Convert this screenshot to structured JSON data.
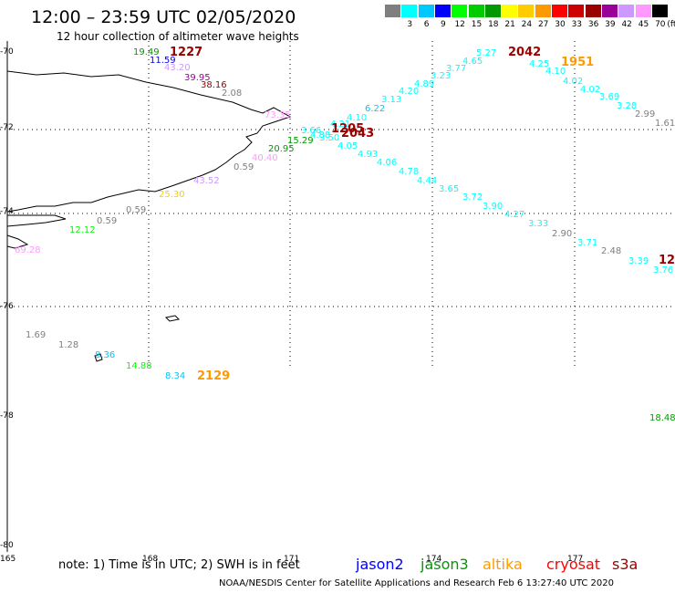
{
  "title": "12:00 – 23:59 UTC 02/05/2020",
  "subtitle": "12 hour collection of altimeter wave heights",
  "legend": {
    "unit": "(ft)",
    "items": [
      {
        "label": "",
        "color": "#7f7f7f"
      },
      {
        "label": "3",
        "color": "#00ffff"
      },
      {
        "label": "6",
        "color": "#00c8ff"
      },
      {
        "label": "9",
        "color": "#0000ff"
      },
      {
        "label": "12",
        "color": "#00ff00"
      },
      {
        "label": "15",
        "color": "#00cc00"
      },
      {
        "label": "18",
        "color": "#009900"
      },
      {
        "label": "21",
        "color": "#ffff00"
      },
      {
        "label": "24",
        "color": "#ffcc00"
      },
      {
        "label": "27",
        "color": "#ff9900"
      },
      {
        "label": "30",
        "color": "#ff0000"
      },
      {
        "label": "33",
        "color": "#cc0000"
      },
      {
        "label": "36",
        "color": "#990000"
      },
      {
        "label": "39",
        "color": "#990099"
      },
      {
        "label": "42",
        "color": "#cc99ff"
      },
      {
        "label": "45",
        "color": "#ff99ff"
      },
      {
        "label": "70",
        "color": "#000000"
      }
    ]
  },
  "lat_labels": [
    "-70",
    "-72",
    "-74",
    "-76",
    "-78",
    "-80"
  ],
  "lon_labels": [
    "165",
    "168",
    "171",
    "174",
    "177"
  ],
  "observations": [
    {
      "text": "19.49",
      "color": "#009900"
    },
    {
      "text": "11.59",
      "color": "#0000ff"
    },
    {
      "text": "43.20",
      "color": "#cc99ff"
    },
    {
      "text": "39.95",
      "color": "#990099"
    },
    {
      "text": "38.16",
      "color": "#990000"
    },
    {
      "text": "2.08",
      "color": "#7f7f7f"
    },
    {
      "text": "73.35",
      "color": "#ff99ff"
    },
    {
      "text": "3.66",
      "color": "#00ffff"
    },
    {
      "text": "4.21",
      "color": "#00ffff"
    },
    {
      "text": "4.10",
      "color": "#00ffff"
    },
    {
      "text": "6.22",
      "color": "#00c8ff"
    },
    {
      "text": "3.13",
      "color": "#00ffff"
    },
    {
      "text": "4.20",
      "color": "#00ffff"
    },
    {
      "text": "4.89",
      "color": "#00ffff"
    },
    {
      "text": "3.23",
      "color": "#00ffff"
    },
    {
      "text": "3.77",
      "color": "#00ffff"
    },
    {
      "text": "4.65",
      "color": "#00ffff"
    },
    {
      "text": "5.27",
      "color": "#00ffff"
    },
    {
      "text": "4.25",
      "color": "#00ffff"
    },
    {
      "text": "4.10",
      "color": "#00ffff"
    },
    {
      "text": "4.02",
      "color": "#00ffff"
    },
    {
      "text": "4.02",
      "color": "#00ffff"
    },
    {
      "text": "3.69",
      "color": "#00ffff"
    },
    {
      "text": "3.28",
      "color": "#00ffff"
    },
    {
      "text": "2.99",
      "color": "#7f7f7f"
    },
    {
      "text": "1.61",
      "color": "#7f7f7f"
    },
    {
      "text": "4.88",
      "color": "#00ffff"
    },
    {
      "text": "3.50",
      "color": "#00ffff"
    },
    {
      "text": "15.29",
      "color": "#009900"
    },
    {
      "text": "20.95",
      "color": "#009900"
    },
    {
      "text": "4.05",
      "color": "#00ffff"
    },
    {
      "text": "4.93",
      "color": "#00ffff"
    },
    {
      "text": "4.06",
      "color": "#00ffff"
    },
    {
      "text": "4.78",
      "color": "#00ffff"
    },
    {
      "text": "4.44",
      "color": "#00ffff"
    },
    {
      "text": "3.65",
      "color": "#00ffff"
    },
    {
      "text": "3.72",
      "color": "#00ffff"
    },
    {
      "text": "3.90",
      "color": "#00ffff"
    },
    {
      "text": "4.27",
      "color": "#00ffff"
    },
    {
      "text": "3.33",
      "color": "#00ffff"
    },
    {
      "text": "2.90",
      "color": "#7f7f7f"
    },
    {
      "text": "3.71",
      "color": "#00ffff"
    },
    {
      "text": "2.48",
      "color": "#7f7f7f"
    },
    {
      "text": "3.39",
      "color": "#00ffff"
    },
    {
      "text": "3.76",
      "color": "#00ffff"
    },
    {
      "text": "40.40",
      "color": "#ff99ff"
    },
    {
      "text": "0.59",
      "color": "#7f7f7f"
    },
    {
      "text": "43.52",
      "color": "#cc99ff"
    },
    {
      "text": "25.30",
      "color": "#ffcc00"
    },
    {
      "text": "0.59",
      "color": "#7f7f7f"
    },
    {
      "text": "0.59",
      "color": "#7f7f7f"
    },
    {
      "text": "12.12",
      "color": "#00ff00"
    },
    {
      "text": "69.28",
      "color": "#ff99ff"
    },
    {
      "text": "1.69",
      "color": "#7f7f7f"
    },
    {
      "text": "1.28",
      "color": "#7f7f7f"
    },
    {
      "text": "8.36",
      "color": "#00c8ff"
    },
    {
      "text": "14.88",
      "color": "#00ff00"
    },
    {
      "text": "8.34",
      "color": "#00c8ff"
    },
    {
      "text": "18.48",
      "color": "#009900"
    }
  ],
  "time_labels": [
    {
      "text": "1227",
      "color": "#990000"
    },
    {
      "text": "2042",
      "color": "#990000"
    },
    {
      "text": "1951",
      "color": "#ff9900"
    },
    {
      "text": "1205",
      "color": "#990000"
    },
    {
      "text": "2043",
      "color": "#990000"
    },
    {
      "text": "12",
      "color": "#990000"
    },
    {
      "text": "2129",
      "color": "#ff9900"
    }
  ],
  "note": "note:  1) Time is in UTC;  2) SWH is in feet",
  "satellites": [
    {
      "name": "jason2",
      "color": "#0000ff"
    },
    {
      "name": "jason3",
      "color": "#009900"
    },
    {
      "name": "altika",
      "color": "#ff9900"
    },
    {
      "name": "cryosat",
      "color": "#ff0000"
    },
    {
      "name": "s3a",
      "color": "#990000"
    }
  ],
  "credit": "NOAA/NESDIS Center for Satellite Applications and Research    Feb  6 13:27:40 UTC 2020"
}
